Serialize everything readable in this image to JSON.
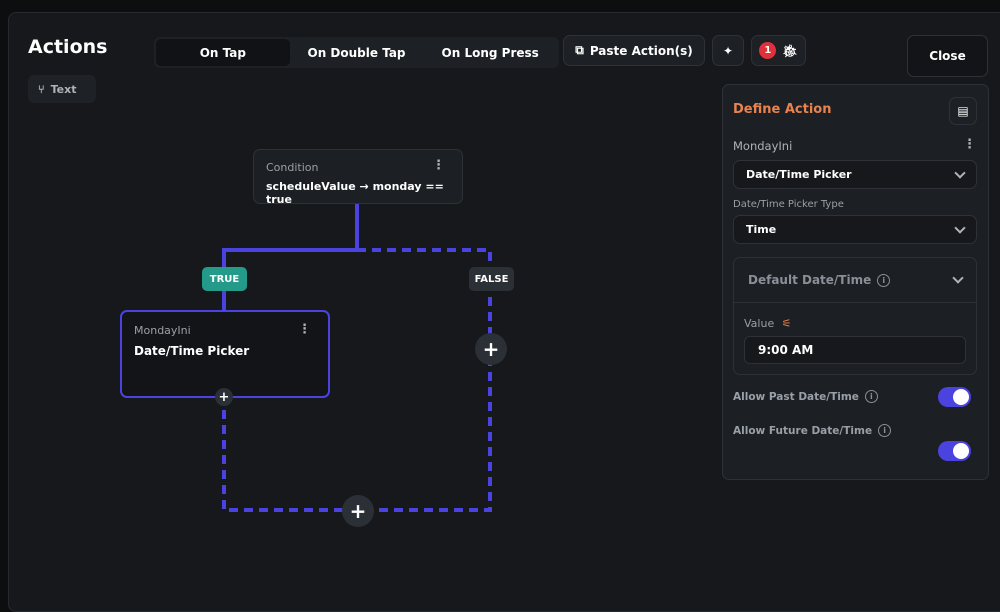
{
  "header": {
    "title": "Actions",
    "text_chip": "Text"
  },
  "tabs": [
    {
      "label": "On Tap",
      "active": true
    },
    {
      "label": "On Double Tap"
    },
    {
      "label": "On Long Press"
    }
  ],
  "toolbar": {
    "paste_label": "Paste Action(s)",
    "error_count": "1",
    "close_label": "Close"
  },
  "canvas": {
    "condition": {
      "label": "Condition",
      "expression": "scheduleValue → monday == true"
    },
    "true_label": "TRUE",
    "false_label": "FALSE",
    "action_node": {
      "subtitle": "MondayIni",
      "title": "Date/Time Picker"
    },
    "accent": "#4b43e0"
  },
  "panel": {
    "title": "Define Action",
    "action_name": "MondayIni",
    "action_type": "Date/Time Picker",
    "picker_type_label": "Date/Time Picker Type",
    "picker_type": "Time",
    "default_section": "Default Date/Time",
    "value_label": "Value",
    "value": "9:00 AM",
    "allow_past_label": "Allow Past Date/Time",
    "allow_past": true,
    "allow_future_label": "Allow Future Date/Time",
    "allow_future": true,
    "title_color": "#e8834f"
  }
}
